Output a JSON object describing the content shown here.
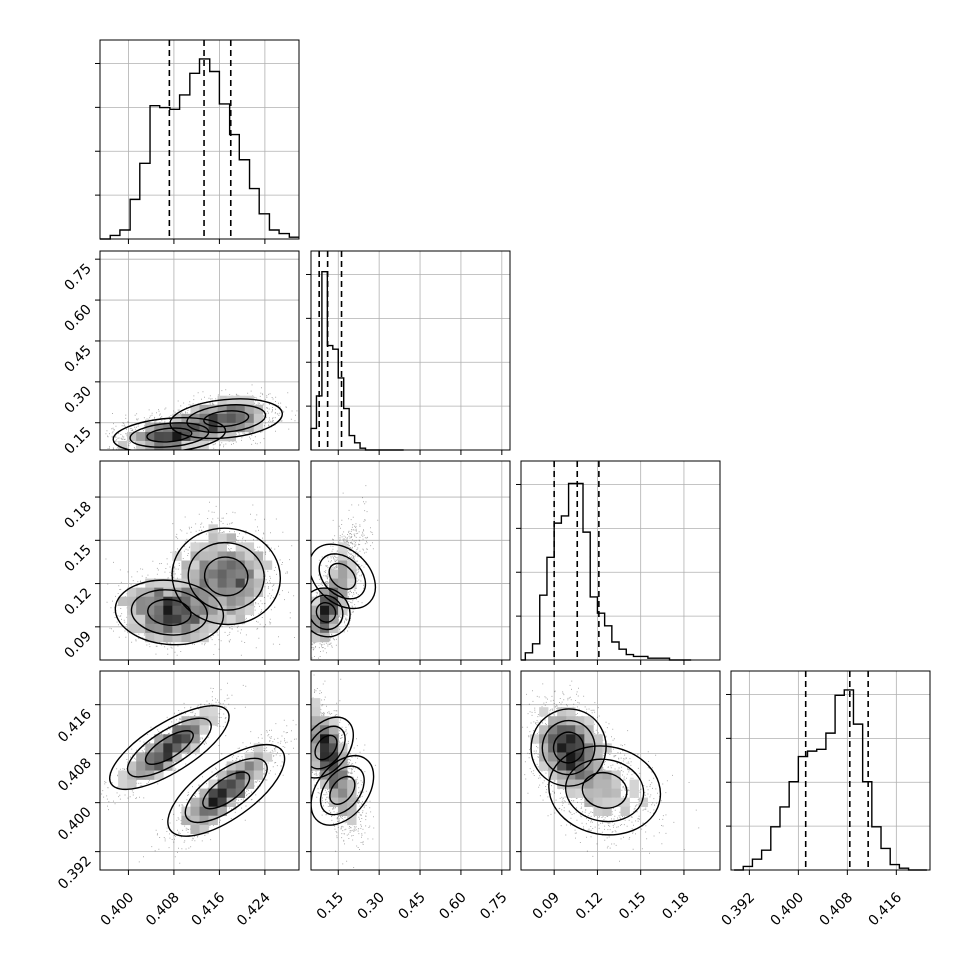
{
  "chart_data": {
    "type": "corner",
    "description_parameters": 4,
    "grid": true,
    "params": [
      {
        "range": [
          0.395,
          0.43
        ],
        "ticks": [
          0.4,
          0.408,
          0.416,
          0.424
        ],
        "tick_labels": [
          "0.400",
          "0.408",
          "0.416",
          "0.424"
        ]
      },
      {
        "range": [
          0.05,
          0.78
        ],
        "ticks": [
          0.15,
          0.3,
          0.45,
          0.6,
          0.75
        ],
        "tick_labels": [
          "0.15",
          "0.30",
          "0.45",
          "0.60",
          "0.75"
        ]
      },
      {
        "range": [
          0.067,
          0.205
        ],
        "ticks": [
          0.09,
          0.12,
          0.15,
          0.18
        ],
        "tick_labels": [
          "0.09",
          "0.12",
          "0.15",
          "0.18"
        ]
      },
      {
        "range": [
          0.389,
          0.4215
        ],
        "ticks": [
          0.392,
          0.4,
          0.408,
          0.416
        ],
        "tick_labels": [
          "0.392",
          "0.400",
          "0.408",
          "0.416"
        ]
      }
    ],
    "histograms": [
      {
        "bins": [
          0.395,
          0.3968,
          0.3985,
          0.4003,
          0.402,
          0.4038,
          0.4055,
          0.4073,
          0.409,
          0.4108,
          0.4125,
          0.4143,
          0.416,
          0.4178,
          0.4195,
          0.4213,
          0.423,
          0.4248,
          0.4265,
          0.4283,
          0.43
        ],
        "counts": [
          0.0,
          0.02,
          0.05,
          0.22,
          0.42,
          0.74,
          0.73,
          0.72,
          0.8,
          0.92,
          1.0,
          0.93,
          0.75,
          0.58,
          0.44,
          0.28,
          0.14,
          0.05,
          0.03,
          0.01
        ],
        "quantiles": [
          0.4072,
          0.4133,
          0.418
        ]
      },
      {
        "bins": [
          0.05,
          0.07,
          0.09,
          0.11,
          0.13,
          0.15,
          0.17,
          0.19,
          0.21,
          0.23,
          0.25,
          0.27,
          0.29,
          0.31,
          0.33,
          0.35,
          0.37,
          0.39
        ],
        "counts": [
          0.12,
          0.3,
          0.99,
          0.58,
          0.56,
          0.4,
          0.23,
          0.08,
          0.04,
          0.01,
          0.0,
          0.0,
          0.0,
          0.0,
          0.0,
          0.0,
          0.0
        ],
        "quantiles": [
          0.08,
          0.111,
          0.162
        ]
      },
      {
        "bins": [
          0.067,
          0.07,
          0.075,
          0.08,
          0.085,
          0.09,
          0.095,
          0.1,
          0.105,
          0.11,
          0.115,
          0.12,
          0.125,
          0.13,
          0.135,
          0.14,
          0.145,
          0.15,
          0.155,
          0.16,
          0.165,
          0.17,
          0.175,
          0.18,
          0.185
        ],
        "counts": [
          0.0,
          0.04,
          0.09,
          0.36,
          0.57,
          0.76,
          0.8,
          0.98,
          0.98,
          0.71,
          0.35,
          0.26,
          0.19,
          0.1,
          0.06,
          0.03,
          0.02,
          0.02,
          0.01,
          0.01,
          0.01,
          0.0,
          0.0,
          0.0
        ],
        "quantiles": [
          0.09,
          0.106,
          0.121
        ]
      },
      {
        "bins": [
          0.3895,
          0.391,
          0.3925,
          0.394,
          0.3955,
          0.397,
          0.3985,
          0.4,
          0.4015,
          0.403,
          0.4045,
          0.406,
          0.4075,
          0.409,
          0.4105,
          0.412,
          0.4135,
          0.415,
          0.4165,
          0.418,
          0.4195,
          0.421
        ],
        "counts": [
          0.0,
          0.02,
          0.06,
          0.11,
          0.24,
          0.35,
          0.49,
          0.63,
          0.66,
          0.67,
          0.76,
          0.97,
          1.0,
          0.81,
          0.49,
          0.24,
          0.12,
          0.03,
          0.01,
          0.0,
          0.0
        ],
        "quantiles": [
          0.4012,
          0.4084,
          0.4114
        ]
      }
    ],
    "modes": [
      [
        {
          "mu": 0.4072,
          "sd": 0.0045,
          "w": 0.48
        },
        {
          "mu": 0.4172,
          "sd": 0.0045,
          "w": 0.52
        }
      ],
      [
        {
          "mu": 0.105,
          "sd": 0.035,
          "w": 0.6
        },
        {
          "mu": 0.165,
          "sd": 0.04,
          "w": 0.4
        }
      ],
      [
        {
          "mu": 0.1,
          "sd": 0.012,
          "w": 0.65
        },
        {
          "mu": 0.125,
          "sd": 0.018,
          "w": 0.35
        }
      ],
      [
        {
          "mu": 0.409,
          "sd": 0.0035,
          "w": 0.55
        },
        {
          "mu": 0.402,
          "sd": 0.004,
          "w": 0.45
        }
      ]
    ],
    "correlations": {
      "1_0": 0.25,
      "2_0": -0.15,
      "2_1": 0.55,
      "3_0": 0.85,
      "3_1": -0.4,
      "3_2": -0.2
    }
  }
}
